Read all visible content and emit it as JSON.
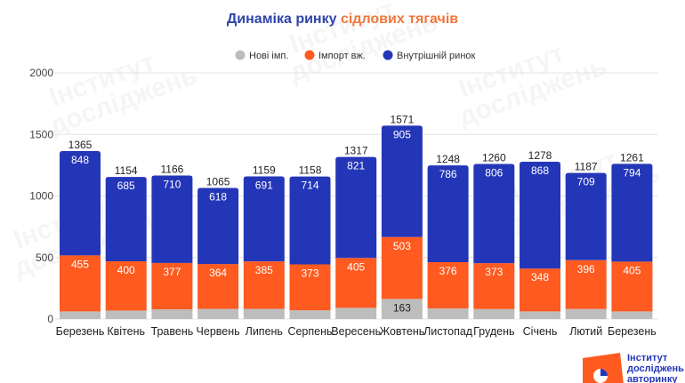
{
  "chart_data": {
    "type": "bar",
    "stacked": true,
    "title_part1": "Динаміка ринку",
    "title_part2": "сідлових тягачів",
    "categories": [
      "Березень",
      "Квітень",
      "Травень",
      "Червень",
      "Липень",
      "Серпень",
      "Вересень",
      "Жовтень",
      "Листопад",
      "Грудень",
      "Січень",
      "Лютий",
      "Березень"
    ],
    "totals": [
      1365,
      1154,
      1166,
      1065,
      1159,
      1158,
      1317,
      1571,
      1248,
      1260,
      1278,
      1187,
      1261
    ],
    "series": [
      {
        "name": "Нові імп.",
        "color": "#bdbdbd",
        "values": [
          62,
          69,
          79,
          83,
          83,
          71,
          91,
          163,
          86,
          81,
          62,
          82,
          62
        ],
        "labeled": [
          false,
          false,
          false,
          false,
          false,
          false,
          false,
          true,
          false,
          false,
          false,
          false,
          false
        ]
      },
      {
        "name": "Імпорт вж.",
        "color": "#ff5a1f",
        "values": [
          455,
          400,
          377,
          364,
          385,
          373,
          405,
          503,
          376,
          373,
          348,
          396,
          405
        ]
      },
      {
        "name": "Внутрішній ринок",
        "color": "#2436b8",
        "values": [
          848,
          685,
          710,
          618,
          691,
          714,
          821,
          905,
          786,
          806,
          868,
          709,
          794
        ]
      }
    ],
    "ylim": [
      0,
      2000
    ],
    "yticks": [
      0,
      500,
      1000,
      1500,
      2000
    ],
    "grid": true,
    "legend_position": "top"
  },
  "colors": {
    "title_blue": "#2f45a8",
    "title_orange": "#f2763a"
  },
  "logo": {
    "line1": "Інститут",
    "line2": "досліджень",
    "line3": "авторинку"
  }
}
